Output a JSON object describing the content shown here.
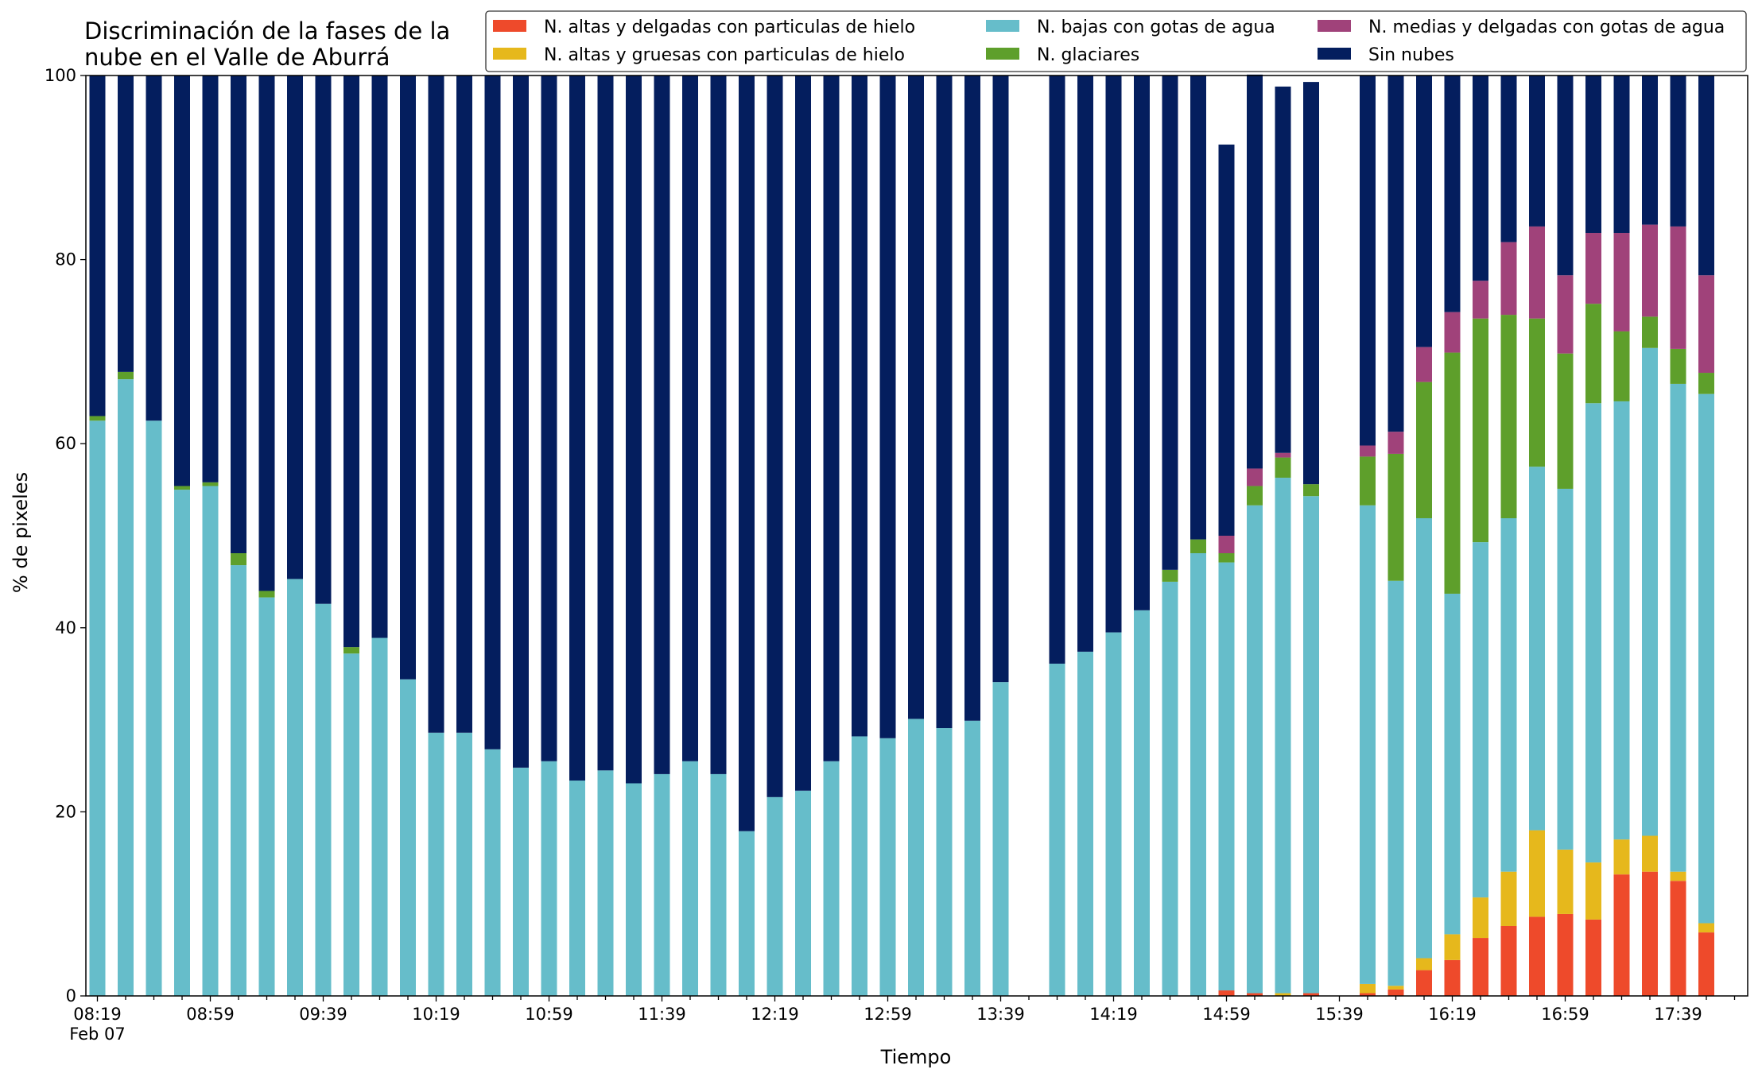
{
  "chart_data": {
    "type": "bar",
    "stacked": true,
    "title": "Discriminación de la fases de la nube en el Valle de Aburrá",
    "title_lines": [
      "Discriminación de la fases de la",
      "nube en el Valle de Aburrá"
    ],
    "xlabel": "Tiempo",
    "ylabel": "% de pixeles",
    "ylim": [
      0,
      100
    ],
    "yticks": [
      0,
      20,
      40,
      60,
      80,
      100
    ],
    "xticks": [
      {
        "index": 0,
        "label": "08:19",
        "sublabel": "Feb 07"
      },
      {
        "index": 4,
        "label": "08:59"
      },
      {
        "index": 8,
        "label": "09:39"
      },
      {
        "index": 12,
        "label": "10:19"
      },
      {
        "index": 16,
        "label": "10:59"
      },
      {
        "index": 20,
        "label": "11:39"
      },
      {
        "index": 24,
        "label": "12:19"
      },
      {
        "index": 28,
        "label": "12:59"
      },
      {
        "index": 32,
        "label": "13:39"
      },
      {
        "index": 36,
        "label": "14:19"
      },
      {
        "index": 40,
        "label": "14:59"
      },
      {
        "index": 44,
        "label": "15:39"
      },
      {
        "index": 48,
        "label": "16:19"
      },
      {
        "index": 52,
        "label": "16:59"
      },
      {
        "index": 56,
        "label": "17:39"
      }
    ],
    "categories": [
      "08:19",
      "08:29",
      "08:39",
      "08:49",
      "08:59",
      "09:09",
      "09:19",
      "09:29",
      "09:39",
      "09:49",
      "09:59",
      "10:09",
      "10:19",
      "10:29",
      "10:39",
      "10:49",
      "10:59",
      "11:09",
      "11:19",
      "11:29",
      "11:39",
      "11:49",
      "11:59",
      "12:09",
      "12:19",
      "12:29",
      "12:39",
      "12:49",
      "12:59",
      "13:09",
      "13:19",
      "13:29",
      "13:39",
      "13:49",
      "13:59",
      "14:09",
      "14:19",
      "14:29",
      "14:39",
      "14:49",
      "14:59",
      "15:09",
      "15:19",
      "15:29",
      "15:39",
      "15:49",
      "15:59",
      "16:09",
      "16:19",
      "16:29",
      "16:39",
      "16:49",
      "16:59",
      "17:09",
      "17:19",
      "17:29",
      "17:39",
      "17:49"
    ],
    "grid": false,
    "legend_position": "top-right",
    "legend_columns": 3,
    "series": [
      {
        "name": "N. altas y delgadas con particulas de hielo",
        "color": "#ee4a2b",
        "values": [
          0,
          0,
          0,
          0,
          0,
          0,
          0,
          0,
          0,
          0,
          0,
          0,
          0,
          0,
          0,
          0,
          0,
          0,
          0,
          0,
          0,
          0,
          0,
          0,
          0,
          0,
          0,
          0,
          0,
          0,
          0,
          0,
          0,
          null,
          0,
          0,
          0,
          0,
          0,
          0,
          0.6,
          0.3,
          0,
          0.3,
          null,
          0.3,
          0.7,
          2.8,
          3.9,
          6.3,
          7.6,
          8.6,
          8.9,
          8.3,
          13.2,
          13.5,
          12.5,
          6.9
        ]
      },
      {
        "name": "N. altas y gruesas con particulas de hielo",
        "color": "#e6b81c",
        "values": [
          0,
          0,
          0,
          0,
          0,
          0,
          0,
          0,
          0,
          0,
          0,
          0,
          0,
          0,
          0,
          0,
          0,
          0,
          0,
          0,
          0,
          0,
          0,
          0,
          0,
          0,
          0,
          0,
          0,
          0,
          0,
          0,
          0,
          null,
          0,
          0,
          0,
          0,
          0,
          0,
          0,
          0,
          0.3,
          0,
          null,
          1,
          0.4,
          1.3,
          2.8,
          4.4,
          5.9,
          9.4,
          7,
          6.2,
          3.8,
          3.9,
          1,
          1
        ]
      },
      {
        "name": "N. bajas con gotas de agua",
        "color": "#66bdca",
        "values": [
          62.5,
          67,
          62.5,
          55,
          55.4,
          46.8,
          43.3,
          45.3,
          42.6,
          37.2,
          38.9,
          34.4,
          28.6,
          28.6,
          26.8,
          24.8,
          25.5,
          23.4,
          24.5,
          23.1,
          24.1,
          25.5,
          24.1,
          17.9,
          21.6,
          22.3,
          25.5,
          28.2,
          28,
          30.1,
          29.1,
          29.9,
          34.1,
          null,
          36.1,
          37.4,
          39.5,
          41.9,
          45,
          48.1,
          46.5,
          53,
          56,
          54,
          null,
          52,
          44,
          47.8,
          37,
          38.6,
          38.4,
          39.5,
          39.2,
          49.9,
          47.6,
          53,
          53,
          57.5
        ]
      },
      {
        "name": "N. glaciares",
        "color": "#5e9f2b",
        "values": [
          0.5,
          0.8,
          0,
          0.4,
          0.4,
          1.3,
          0.7,
          0,
          0,
          0.7,
          0,
          0,
          0,
          0,
          0,
          0,
          0,
          0,
          0,
          0,
          0,
          0,
          0,
          0,
          0,
          0,
          0,
          0,
          0,
          0,
          0,
          0,
          0,
          null,
          0,
          0,
          0,
          0,
          1.3,
          1.5,
          1,
          2.1,
          2.2,
          1.3,
          null,
          5.3,
          13.8,
          14.8,
          26.2,
          24.3,
          22.1,
          16.1,
          14.7,
          10.8,
          7.6,
          3.4,
          3.8,
          2.3
        ]
      },
      {
        "name": "N. medias y delgadas con gotas de agua",
        "color": "#a0427a",
        "values": [
          0,
          0,
          0,
          0,
          0,
          0,
          0,
          0,
          0,
          0,
          0,
          0,
          0,
          0,
          0,
          0,
          0,
          0,
          0,
          0,
          0,
          0,
          0,
          0,
          0,
          0,
          0,
          0,
          0,
          0,
          0,
          0,
          0,
          null,
          0,
          0,
          0,
          0,
          0,
          0,
          1.9,
          1.9,
          0.5,
          0,
          null,
          1.2,
          2.4,
          3.8,
          4.4,
          4.1,
          7.9,
          10,
          8.5,
          7.7,
          10.7,
          10,
          13.3,
          10.6
        ]
      },
      {
        "name": "Sin nubes",
        "color": "#041e5e",
        "values": [
          37,
          32.2,
          37.5,
          44.6,
          44.2,
          51.9,
          56,
          54.7,
          57.4,
          62.1,
          61.1,
          65.6,
          71.4,
          71.4,
          73.2,
          75.2,
          74.5,
          76.6,
          75.5,
          76.9,
          75.9,
          74.5,
          75.9,
          82.1,
          78.4,
          77.7,
          74.5,
          71.8,
          72,
          69.9,
          70.9,
          70.1,
          65.9,
          null,
          63.9,
          62.6,
          60.5,
          58.1,
          53.7,
          50.4,
          42.5,
          42.8,
          39.8,
          43.7,
          null,
          40.2,
          38.7,
          29.5,
          25.7,
          22.3,
          18.1,
          16.4,
          21.7,
          17.1,
          17.1,
          16.2,
          16.4,
          21.7
        ]
      }
    ]
  }
}
